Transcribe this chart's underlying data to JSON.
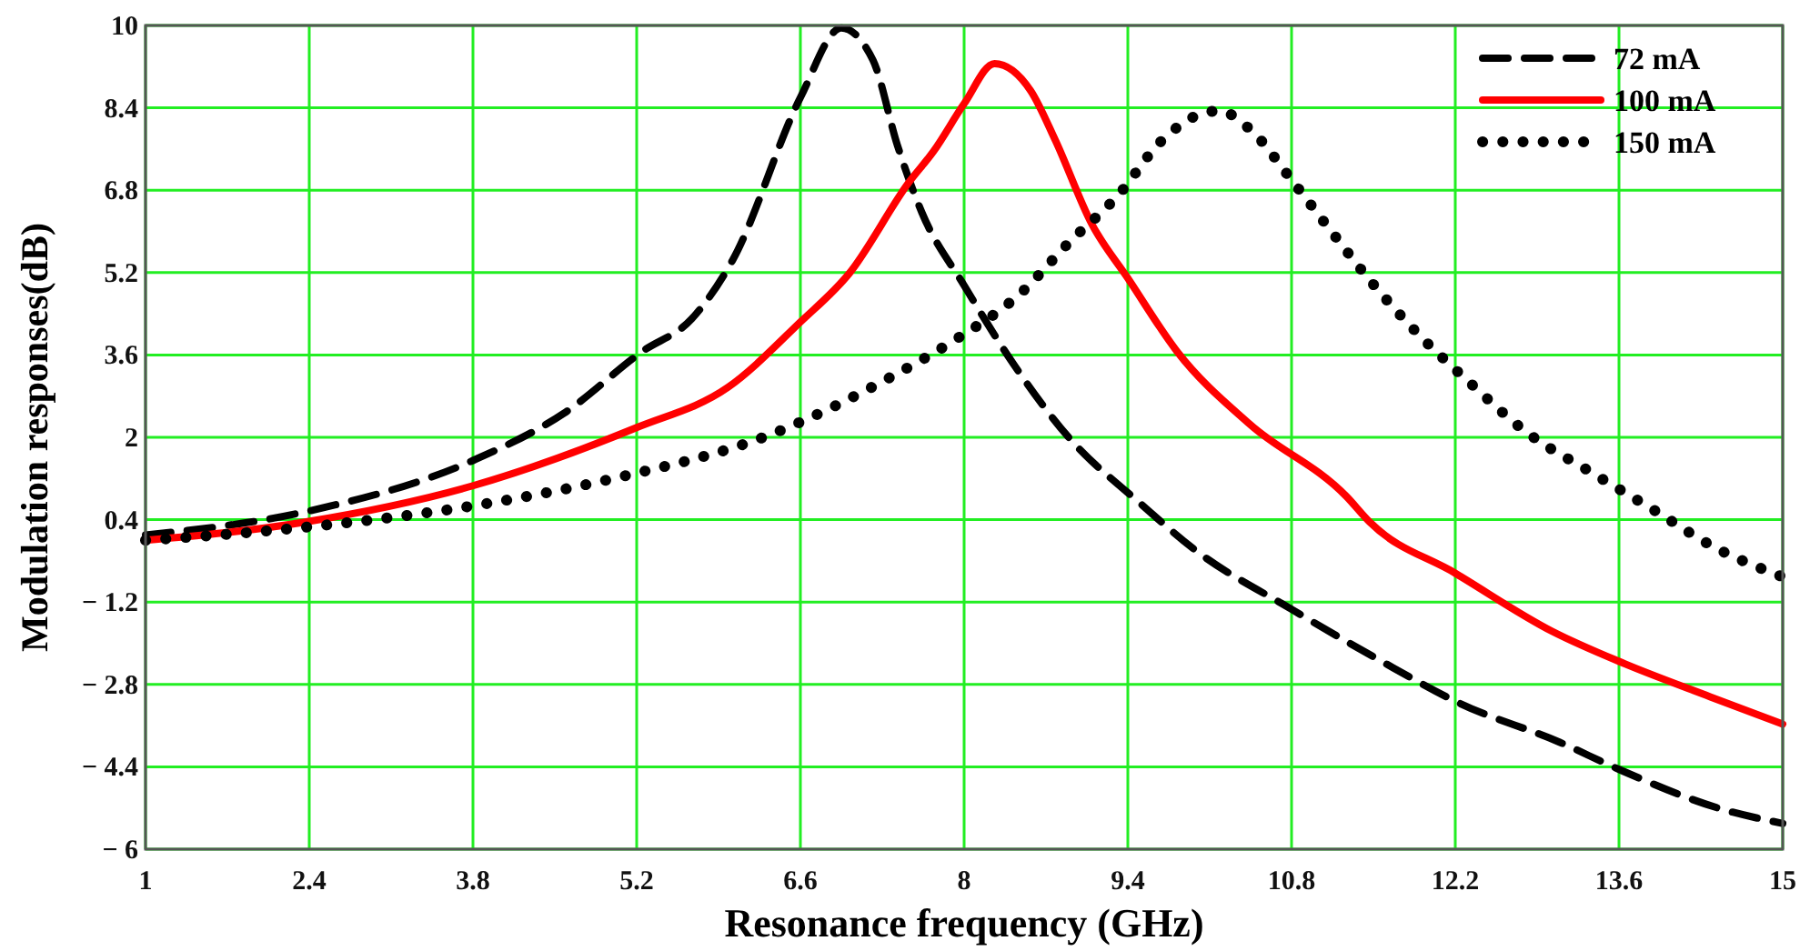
{
  "chart_data": {
    "type": "line",
    "xlabel": "Resonance frequency (GHz)",
    "ylabel": "Modulation responses(dB)",
    "xlim": [
      1,
      15
    ],
    "xticks": [
      1,
      2.4,
      3.8,
      5.2,
      6.6,
      8,
      9.4,
      10.8,
      12.2,
      13.6,
      15
    ],
    "ylim": [
      -6,
      10
    ],
    "yticks": [
      {
        "value": -6,
        "label": "− 6"
      },
      {
        "value": -4.4,
        "label": "− 4.4"
      },
      {
        "value": -2.8,
        "label": "− 2.8"
      },
      {
        "value": -1.2,
        "label": "− 1.2"
      },
      0.4,
      2,
      3.6,
      5.2,
      6.8,
      8.4,
      10
    ],
    "grid": true,
    "legend": "top right",
    "series": [
      {
        "name": "72 mA",
        "color": "#000000",
        "line_style": "dashed",
        "x": [
          1,
          2.4,
          3.8,
          4.58,
          5.25,
          5.67,
          6.02,
          6.6,
          6.95,
          7.22,
          7.43,
          7.64,
          8.0,
          8.42,
          8.89,
          9.51,
          9.97,
          10.8,
          11.53,
          12.25,
          13.09,
          13.6,
          14.49,
          15
        ],
        "values": [
          0.1,
          0.57,
          1.55,
          2.47,
          3.67,
          4.3,
          5.44,
          8.6,
          9.95,
          9.33,
          7.67,
          6.36,
          4.95,
          3.43,
          2.01,
          0.71,
          -0.18,
          -1.34,
          -2.3,
          -3.18,
          -3.92,
          -4.45,
          -5.23,
          -5.5
        ]
      },
      {
        "name": "100 mA",
        "color": "#ff0000",
        "line_style": "solid",
        "x": [
          1,
          2.35,
          3.8,
          5.2,
          5.98,
          6.6,
          7.02,
          7.53,
          7.74,
          8.0,
          8.26,
          8.57,
          8.78,
          9.09,
          9.4,
          9.82,
          10.44,
          11.27,
          11.47,
          12.2,
          13.03,
          13.65,
          14.38,
          15
        ],
        "values": [
          0.0,
          0.35,
          1.06,
          2.19,
          2.97,
          4.24,
          5.19,
          6.96,
          7.56,
          8.48,
          9.26,
          8.73,
          7.77,
          6.15,
          5.09,
          3.67,
          2.26,
          0.85,
          0.35,
          -0.64,
          -1.77,
          -2.4,
          -3.04,
          -3.57
        ]
      },
      {
        "name": "150 mA",
        "color": "#000000",
        "line_style": "dotted",
        "x": [
          1,
          2.35,
          3.91,
          5.0,
          6.34,
          7.38,
          7.92,
          8.47,
          8.9,
          9.32,
          9.68,
          10.05,
          10.18,
          10.46,
          10.8,
          11.14,
          11.47,
          11.86,
          12.32,
          12.82,
          13.37,
          13.91,
          14.42,
          15
        ],
        "values": [
          0.0,
          0.25,
          0.71,
          1.2,
          2.05,
          3.18,
          3.89,
          4.77,
          5.79,
          6.71,
          7.74,
          8.3,
          8.34,
          7.95,
          7.0,
          6.0,
          5.05,
          4.06,
          3.07,
          2.08,
          1.31,
          0.57,
          -0.14,
          -0.71
        ]
      }
    ]
  }
}
